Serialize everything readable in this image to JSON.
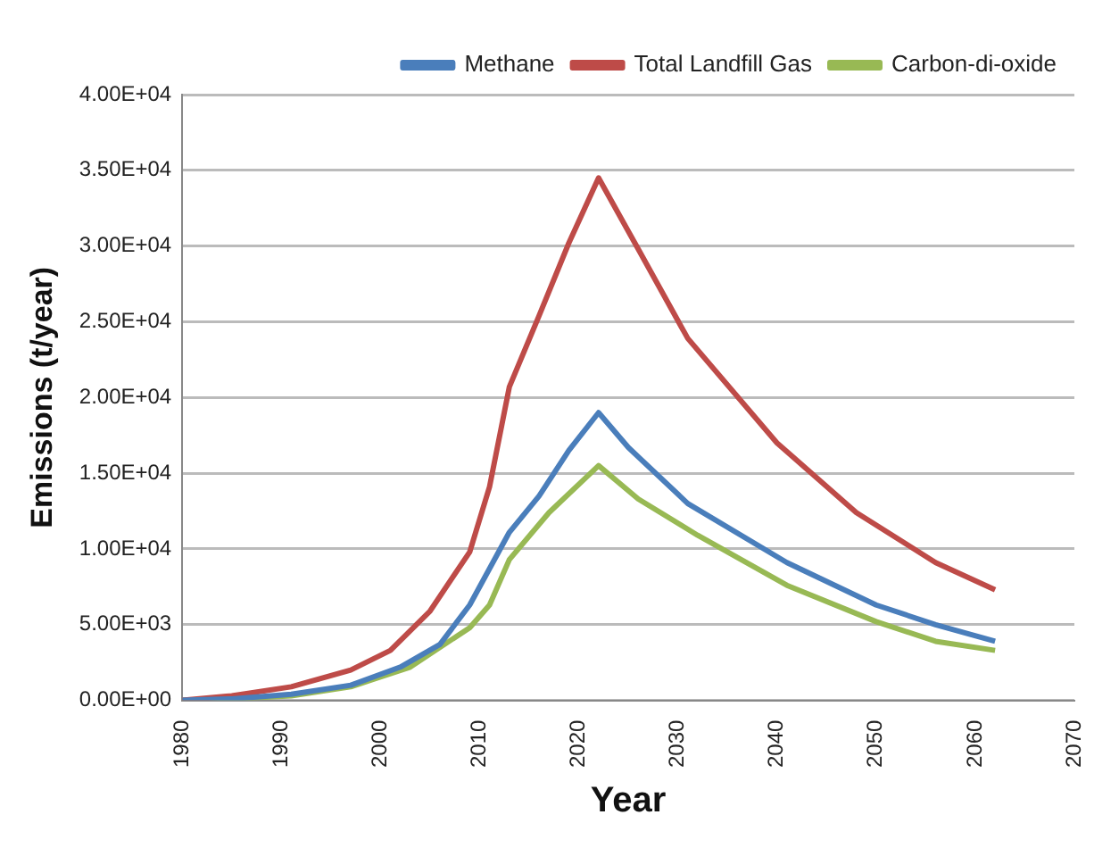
{
  "chart_data": {
    "type": "line",
    "xlabel": "Year",
    "ylabel": "Emissions (t/year)",
    "legend": "top",
    "grid": "y",
    "marker": "none",
    "line_style": "solid",
    "xlim": [
      1980,
      2070
    ],
    "xticks": [
      1980,
      1990,
      2000,
      2010,
      2020,
      2030,
      2040,
      2050,
      2060,
      2070
    ],
    "ylim": [
      0,
      40000
    ],
    "yticks": [
      {
        "value": 0,
        "label": "0.00E+00"
      },
      {
        "value": 5000,
        "label": "5.00E+03"
      },
      {
        "value": 10000,
        "label": "1.00E+04"
      },
      {
        "value": 15000,
        "label": "1.50E+04"
      },
      {
        "value": 20000,
        "label": "2.00E+04"
      },
      {
        "value": 25000,
        "label": "2.50E+04"
      },
      {
        "value": 30000,
        "label": "3.00E+04"
      },
      {
        "value": 35000,
        "label": "3.50E+04"
      },
      {
        "value": 40000,
        "label": "4.00E+04"
      }
    ],
    "series": [
      {
        "name": "Methane",
        "color": "#4a7ebb",
        "x": [
          1980,
          1985,
          1991,
          1997,
          2002,
          2006,
          2009,
          2013,
          2016,
          2019,
          2022,
          2025,
          2031,
          2041,
          2050,
          2056,
          2062
        ],
        "values": [
          0,
          100,
          400,
          1000,
          2200,
          3700,
          6300,
          11100,
          13500,
          16500,
          19000,
          16700,
          13000,
          9100,
          6300,
          5000,
          3900
        ]
      },
      {
        "name": "Total Landfill Gas",
        "color": "#be4b48",
        "x": [
          1980,
          1985,
          1991,
          1997,
          2001,
          2005,
          2009,
          2011,
          2013,
          2016,
          2019,
          2022,
          2026,
          2031,
          2040,
          2048,
          2056,
          2062
        ],
        "values": [
          0,
          300,
          900,
          2000,
          3300,
          5900,
          9800,
          14100,
          20700,
          25400,
          30200,
          34500,
          29800,
          23900,
          17000,
          12400,
          9100,
          7300
        ]
      },
      {
        "name": "Carbon-di-oxide",
        "color": "#98b954",
        "x": [
          1980,
          1985,
          1991,
          1997,
          2003,
          2009,
          2011,
          2013,
          2017,
          2022,
          2026,
          2032,
          2041,
          2050,
          2056,
          2062
        ],
        "values": [
          0,
          100,
          300,
          900,
          2200,
          4800,
          6300,
          9300,
          12400,
          15500,
          13300,
          10900,
          7600,
          5200,
          3900,
          3300
        ]
      }
    ]
  }
}
